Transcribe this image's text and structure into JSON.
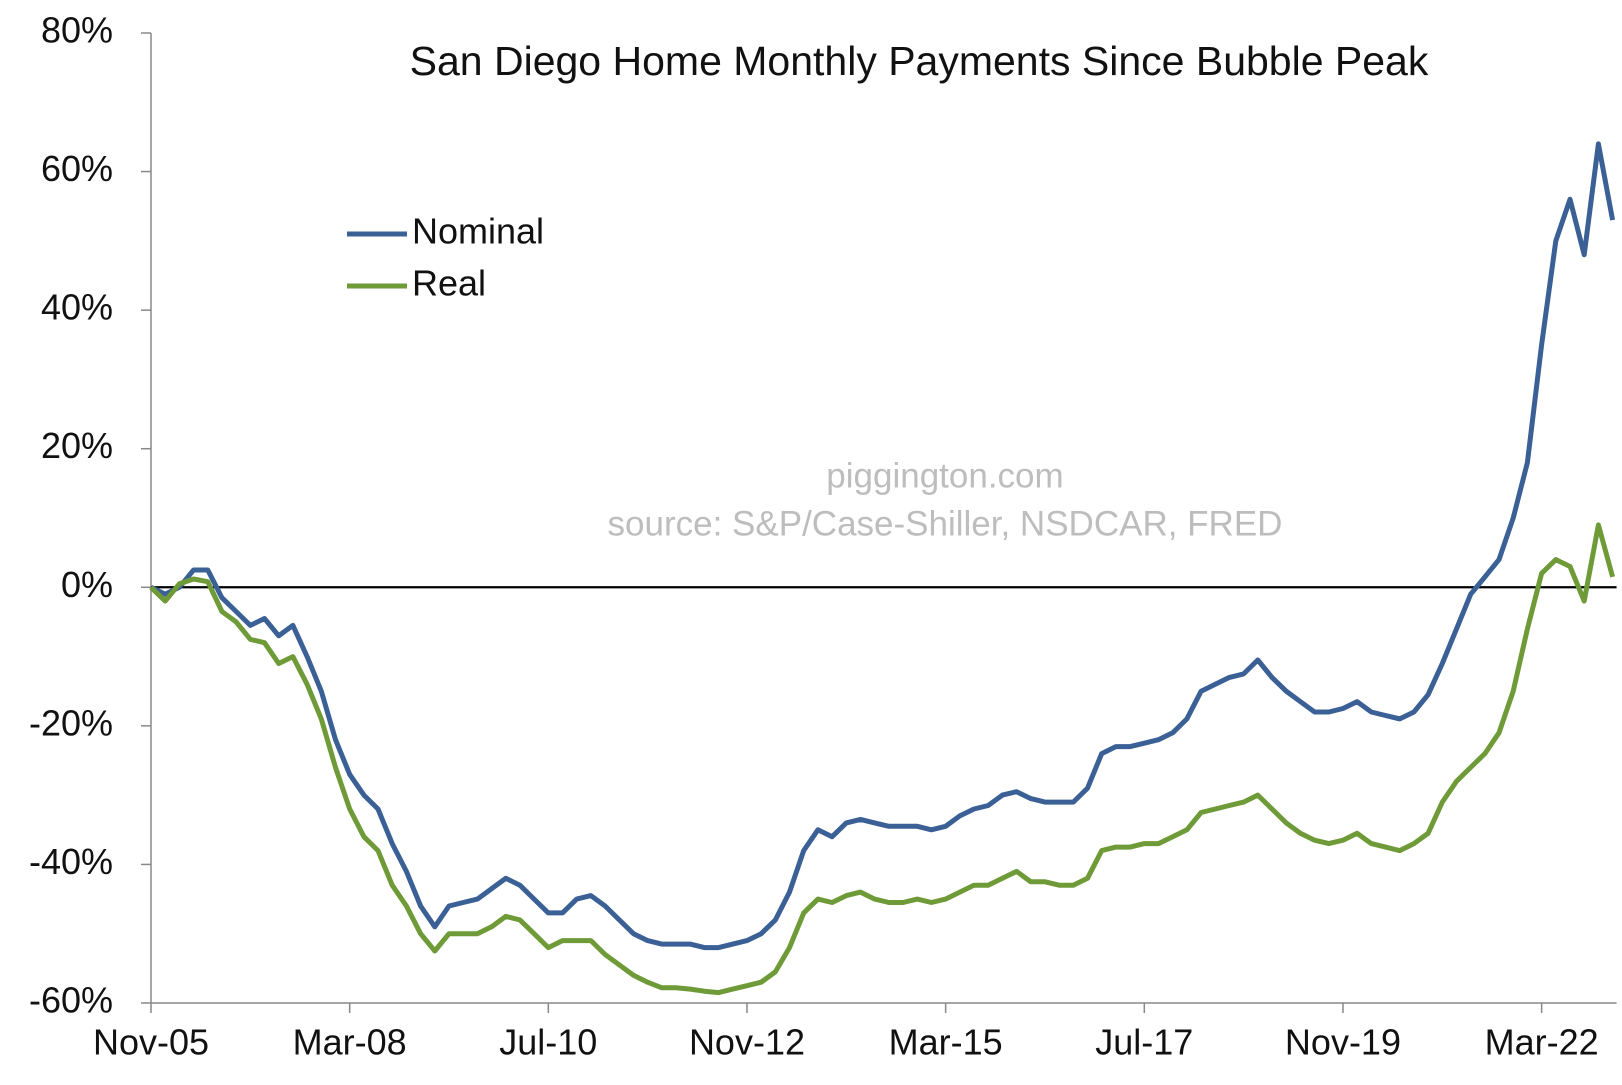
{
  "chart_data": {
    "type": "line",
    "title": "San Diego Home Monthly Payments Since Bubble Peak",
    "annotations": [
      "piggington.com",
      "source: S&P/Case-Shiller, NSDCAR, FRED"
    ],
    "categories": [
      "Nov-05",
      null,
      null,
      null,
      null,
      null,
      null,
      null,
      null,
      null,
      null,
      null,
      null,
      null,
      "Mar-08",
      null,
      null,
      null,
      null,
      null,
      null,
      null,
      null,
      null,
      null,
      null,
      null,
      null,
      "Jul-10",
      null,
      null,
      null,
      null,
      null,
      null,
      null,
      null,
      null,
      null,
      null,
      null,
      null,
      "Nov-12",
      null,
      null,
      null,
      null,
      null,
      null,
      null,
      null,
      null,
      null,
      null,
      null,
      null,
      "Mar-15",
      null,
      null,
      null,
      null,
      null,
      null,
      null,
      null,
      null,
      null,
      null,
      null,
      null,
      "Jul-17",
      null,
      null,
      null,
      null,
      null,
      null,
      null,
      null,
      null,
      null,
      null,
      null,
      null,
      "Nov-19",
      null,
      null,
      null,
      null,
      null,
      null,
      null,
      null,
      null,
      null,
      null,
      null,
      null,
      "Mar-22",
      null,
      null,
      null,
      null,
      null
    ],
    "series": [
      {
        "name": "Nominal",
        "color": "#3a6096",
        "values": [
          0,
          -1,
          0,
          2.5,
          2.5,
          -1.5,
          -3.5,
          -5.5,
          -4.5,
          -7,
          -5.5,
          -10,
          -15,
          -22,
          -27,
          -30,
          -32,
          -37,
          -41,
          -46,
          -49,
          -46,
          -45.5,
          -45,
          -43.5,
          -42,
          -43,
          -45,
          -47,
          -47,
          -45,
          -44.5,
          -46,
          -48,
          -50,
          -51,
          -51.5,
          -51.5,
          -51.5,
          -52,
          -52,
          -51.5,
          -51,
          -50,
          -48,
          -44,
          -38,
          -35,
          -36,
          -34,
          -33.5,
          -34,
          -34.5,
          -34.5,
          -34.5,
          -35,
          -34.5,
          -33,
          -32,
          -31.5,
          -30,
          -29.5,
          -30.5,
          -31,
          -31,
          -31,
          -29,
          -24,
          -23,
          -23,
          -22.5,
          -22,
          -21,
          -19,
          -15,
          -14,
          -13,
          -12.5,
          -10.5,
          -13,
          -15,
          -16.5,
          -18,
          -18,
          -17.5,
          -16.5,
          -18,
          -18.5,
          -19,
          -18,
          -15.5,
          -11,
          -6,
          -1,
          1.5,
          4,
          10,
          18,
          35,
          50,
          56,
          48,
          64,
          53
        ]
      },
      {
        "name": "Real",
        "color": "#6e9a38",
        "values": [
          0,
          -2,
          0.5,
          1.2,
          0.8,
          -3.5,
          -5,
          -7.5,
          -8,
          -11,
          -10,
          -14,
          -19,
          -26,
          -32,
          -36,
          -38,
          -43,
          -46,
          -50,
          -52.5,
          -50,
          -50,
          -50,
          -49,
          -47.5,
          -48,
          -50,
          -52,
          -51,
          -51,
          -51,
          -53,
          -54.5,
          -56,
          -57,
          -57.8,
          -57.8,
          -58,
          -58.3,
          -58.5,
          -58,
          -57.5,
          -57,
          -55.5,
          -52,
          -47,
          -45,
          -45.5,
          -44.5,
          -44,
          -45,
          -45.5,
          -45.5,
          -45,
          -45.5,
          -45,
          -44,
          -43,
          -43,
          -42,
          -41,
          -42.5,
          -42.5,
          -43,
          -43,
          -42,
          -38,
          -37.5,
          -37.5,
          -37,
          -37,
          -36,
          -35,
          -32.5,
          -32,
          -31.5,
          -31,
          -30,
          -32,
          -34,
          -35.5,
          -36.5,
          -37,
          -36.5,
          -35.5,
          -37,
          -37.5,
          -38,
          -37,
          -35.5,
          -31,
          -28,
          -26,
          -24,
          -21,
          -15,
          -6,
          2,
          4,
          3,
          -2,
          9,
          1.5
        ]
      }
    ],
    "ylim": [
      -60,
      80
    ],
    "yticks": [
      {
        "value": -60,
        "label": "-60%"
      },
      {
        "value": -40,
        "label": "-40%"
      },
      {
        "value": -20,
        "label": "-20%"
      },
      {
        "value": 0,
        "label": "0%"
      },
      {
        "value": 20,
        "label": "20%"
      },
      {
        "value": 40,
        "label": "40%"
      },
      {
        "value": 60,
        "label": "60%"
      },
      {
        "value": 80,
        "label": "80%"
      }
    ],
    "grid": false,
    "legend": "upper left"
  }
}
